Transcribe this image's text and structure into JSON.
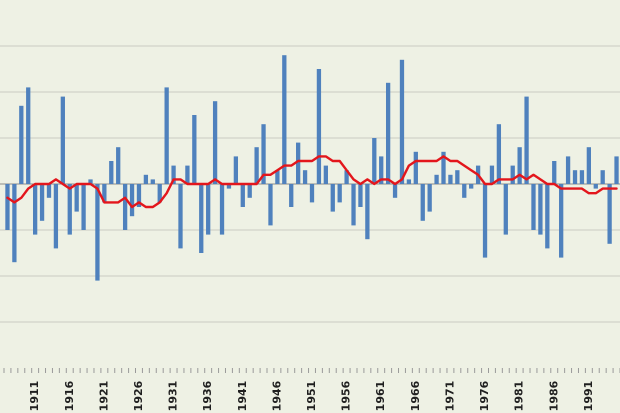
{
  "chart_data": {
    "type": "bar",
    "title": "",
    "xlabel": "",
    "ylabel": "",
    "grid": true,
    "legend": "none",
    "x_start": 1907,
    "x_end": 1995,
    "x_tick_labels": [
      "1911",
      "1916",
      "1921",
      "1926",
      "1931",
      "1936",
      "1941",
      "1946",
      "1951",
      "1956",
      "1961",
      "1966",
      "1971",
      "1976",
      "1981",
      "1986",
      "1991"
    ],
    "ylim": [
      -4,
      4
    ],
    "gridline_values": [
      -3,
      -2,
      -1,
      1,
      2,
      3
    ],
    "years": [
      1907,
      1908,
      1909,
      1910,
      1911,
      1912,
      1913,
      1914,
      1915,
      1916,
      1917,
      1918,
      1919,
      1920,
      1921,
      1922,
      1923,
      1924,
      1925,
      1926,
      1927,
      1928,
      1929,
      1930,
      1931,
      1932,
      1933,
      1934,
      1935,
      1936,
      1937,
      1938,
      1939,
      1940,
      1941,
      1942,
      1943,
      1944,
      1945,
      1946,
      1947,
      1948,
      1949,
      1950,
      1951,
      1952,
      1953,
      1954,
      1955,
      1956,
      1957,
      1958,
      1959,
      1960,
      1961,
      1962,
      1963,
      1964,
      1965,
      1966,
      1967,
      1968,
      1969,
      1970,
      1971,
      1972,
      1973,
      1974,
      1975,
      1976,
      1977,
      1978,
      1979,
      1980,
      1981,
      1982,
      1983,
      1984,
      1985,
      1986,
      1987,
      1988,
      1989,
      1990,
      1991,
      1992,
      1993,
      1994,
      1995
    ],
    "series": [
      {
        "type": "bar",
        "color": "#4f81bd",
        "values": [
          -1.0,
          -1.7,
          1.7,
          2.1,
          -1.1,
          -0.8,
          -0.3,
          -1.4,
          1.9,
          -1.1,
          -0.6,
          -1.0,
          0.1,
          -2.1,
          -0.4,
          0.5,
          0.8,
          -1.0,
          -0.7,
          -0.5,
          0.2,
          0.1,
          -0.4,
          2.1,
          0.4,
          -1.4,
          0.4,
          1.5,
          -1.5,
          -1.1,
          1.8,
          -1.1,
          -0.1,
          0.6,
          -0.5,
          -0.3,
          0.8,
          1.3,
          -0.9,
          0.3,
          2.8,
          -0.5,
          0.9,
          0.3,
          -0.4,
          2.5,
          0.4,
          -0.6,
          -0.4,
          0.3,
          -0.9,
          -0.5,
          -1.2,
          1.0,
          0.6,
          2.2,
          -0.3,
          2.7,
          0.1,
          0.7,
          -0.8,
          -0.6,
          0.2,
          0.7,
          0.2,
          0.3,
          -0.3,
          -0.1,
          0.4,
          -1.6,
          0.4,
          1.3,
          -1.1,
          0.4,
          0.8,
          1.9,
          -1.0,
          -1.1,
          -1.4,
          0.5,
          -1.6,
          0.6,
          0.3,
          0.3,
          0.8,
          -0.1,
          0.3,
          -1.3,
          0.6
        ]
      },
      {
        "type": "line",
        "color": "#e3161c",
        "values": [
          -0.3,
          -0.4,
          -0.3,
          -0.1,
          0.0,
          0.0,
          0.0,
          0.1,
          0.0,
          -0.1,
          0.0,
          0.0,
          0.0,
          -0.1,
          -0.4,
          -0.4,
          -0.4,
          -0.3,
          -0.5,
          -0.4,
          -0.5,
          -0.5,
          -0.4,
          -0.2,
          0.1,
          0.1,
          0.0,
          0.0,
          0.0,
          0.0,
          0.1,
          0.0,
          0.0,
          0.0,
          0.0,
          0.0,
          0.0,
          0.2,
          0.2,
          0.3,
          0.4,
          0.4,
          0.5,
          0.5,
          0.5,
          0.6,
          0.6,
          0.5,
          0.5,
          0.3,
          0.1,
          0.0,
          0.1,
          0.0,
          0.1,
          0.1,
          0.0,
          0.1,
          0.4,
          0.5,
          0.5,
          0.5,
          0.5,
          0.6,
          0.5,
          0.5,
          0.4,
          0.3,
          0.2,
          0.0,
          0.0,
          0.1,
          0.1,
          0.1,
          0.2,
          0.1,
          0.2,
          0.1,
          0.0,
          0.0,
          -0.1,
          -0.1,
          -0.1,
          -0.1,
          -0.2,
          -0.2,
          -0.1,
          -0.1,
          -0.1
        ]
      }
    ]
  }
}
